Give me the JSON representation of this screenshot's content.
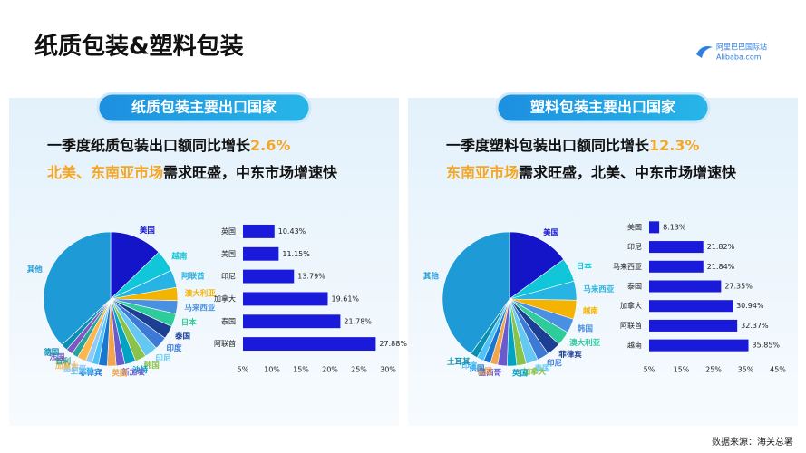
{
  "title": "纸质包装&塑料包装",
  "logo": {
    "brand": "阿里巴巴国际站",
    "site": "Alibaba.com"
  },
  "panels": [
    {
      "heading": "纸质包装主要出口国家",
      "line1": "一季度纸质包装出口额同比增长",
      "growth": "2.6%",
      "line2_highlight": "北美、东南亚市场",
      "line2_rest": "需求旺盛，中东市场增速快"
    },
    {
      "heading": "塑料包装主要出口国家",
      "line1": "一季度塑料包装出口额同比增长",
      "growth": "12.3%",
      "line2_highlight": "东南亚市场",
      "line2_rest": "需求旺盛，北美、中东市场增速快"
    }
  ],
  "source": "数据来源：海关总署",
  "chart_data": [
    {
      "type": "pie",
      "categories": [
        "美国",
        "越南",
        "阿联酋",
        "澳大利亚",
        "马来西亚",
        "日本",
        "泰国",
        "印度",
        "印尼",
        "韩国",
        "沙特",
        "新加坡",
        "英国",
        "菲律宾",
        "土耳其",
        "墨西哥",
        "加拿大",
        "智利",
        "法国",
        "德国",
        "其他"
      ],
      "values": [
        12,
        5,
        4,
        3,
        3,
        3,
        3,
        3,
        3,
        2.5,
        2.5,
        2,
        2,
        2,
        1.5,
        1.5,
        2,
        1.5,
        1.5,
        1.5,
        35
      ],
      "colors": [
        "#1414c8",
        "#12c6d9",
        "#27b3e3",
        "#f5b301",
        "#4a90e2",
        "#2ecc9a",
        "#1c3f94",
        "#3c7ad6",
        "#64c8f0",
        "#8bc34a",
        "#00a3c4",
        "#6a5acd",
        "#f2a54a",
        "#1976d2",
        "#4fc3f7",
        "#90caf9",
        "#ffb74d",
        "#26a69a",
        "#7e57c2",
        "#0b8fb0",
        "#1e9bd7"
      ]
    },
    {
      "type": "bar",
      "orientation": "horizontal",
      "color": "#1a1adb",
      "categories": [
        "英国",
        "美国",
        "印尼",
        "加拿大",
        "泰国",
        "阿联酋"
      ],
      "values": [
        10.43,
        11.15,
        13.79,
        19.61,
        21.78,
        27.88
      ],
      "value_labels": [
        "10.43%",
        "11.15%",
        "13.79%",
        "19.61%",
        "21.78%",
        "27.88%"
      ],
      "xlim": [
        5,
        30
      ],
      "xticks": [
        {
          "value": 5,
          "label": "5%"
        },
        {
          "value": 10,
          "label": "10%"
        },
        {
          "value": 15,
          "label": "15%"
        },
        {
          "value": 20,
          "label": "20%"
        },
        {
          "value": 25,
          "label": "25%"
        },
        {
          "value": 30,
          "label": "30%"
        }
      ]
    },
    {
      "type": "pie",
      "categories": [
        "美国",
        "日本",
        "马来西亚",
        "越南",
        "韩国",
        "澳大利亚",
        "菲律宾",
        "印尼",
        "泰国",
        "加拿大",
        "英国",
        "墨西哥",
        "德国",
        "法国",
        "印度",
        "土耳其",
        "其他"
      ],
      "values": [
        13,
        5,
        4,
        4,
        3,
        3,
        3,
        2.5,
        2.5,
        2,
        2,
        2,
        1.5,
        1.5,
        1.5,
        1.5,
        35
      ],
      "colors": [
        "#1414c8",
        "#12c6d9",
        "#27b3e3",
        "#f5b301",
        "#4a90e2",
        "#2ecc9a",
        "#1c3f94",
        "#3c7ad6",
        "#64c8f0",
        "#8bc34a",
        "#00a3c4",
        "#6a5acd",
        "#f2a54a",
        "#1976d2",
        "#4fc3f7",
        "#0b8fb0",
        "#1e9bd7"
      ]
    },
    {
      "type": "bar",
      "orientation": "horizontal",
      "color": "#1a1adb",
      "categories": [
        "美国",
        "印尼",
        "马来西亚",
        "泰国",
        "加拿大",
        "阿联酋",
        "越南"
      ],
      "values": [
        8.13,
        21.82,
        21.84,
        27.35,
        30.94,
        32.37,
        35.85
      ],
      "value_labels": [
        "8.13%",
        "21.82%",
        "21.84%",
        "27.35%",
        "30.94%",
        "32.37%",
        "35.85%"
      ],
      "xlim": [
        5,
        45
      ],
      "xticks": [
        {
          "value": 5,
          "label": "5%"
        },
        {
          "value": 15,
          "label": "15%"
        },
        {
          "value": 25,
          "label": "25%"
        },
        {
          "value": 35,
          "label": "35%"
        },
        {
          "value": 45,
          "label": "45%"
        }
      ]
    }
  ]
}
